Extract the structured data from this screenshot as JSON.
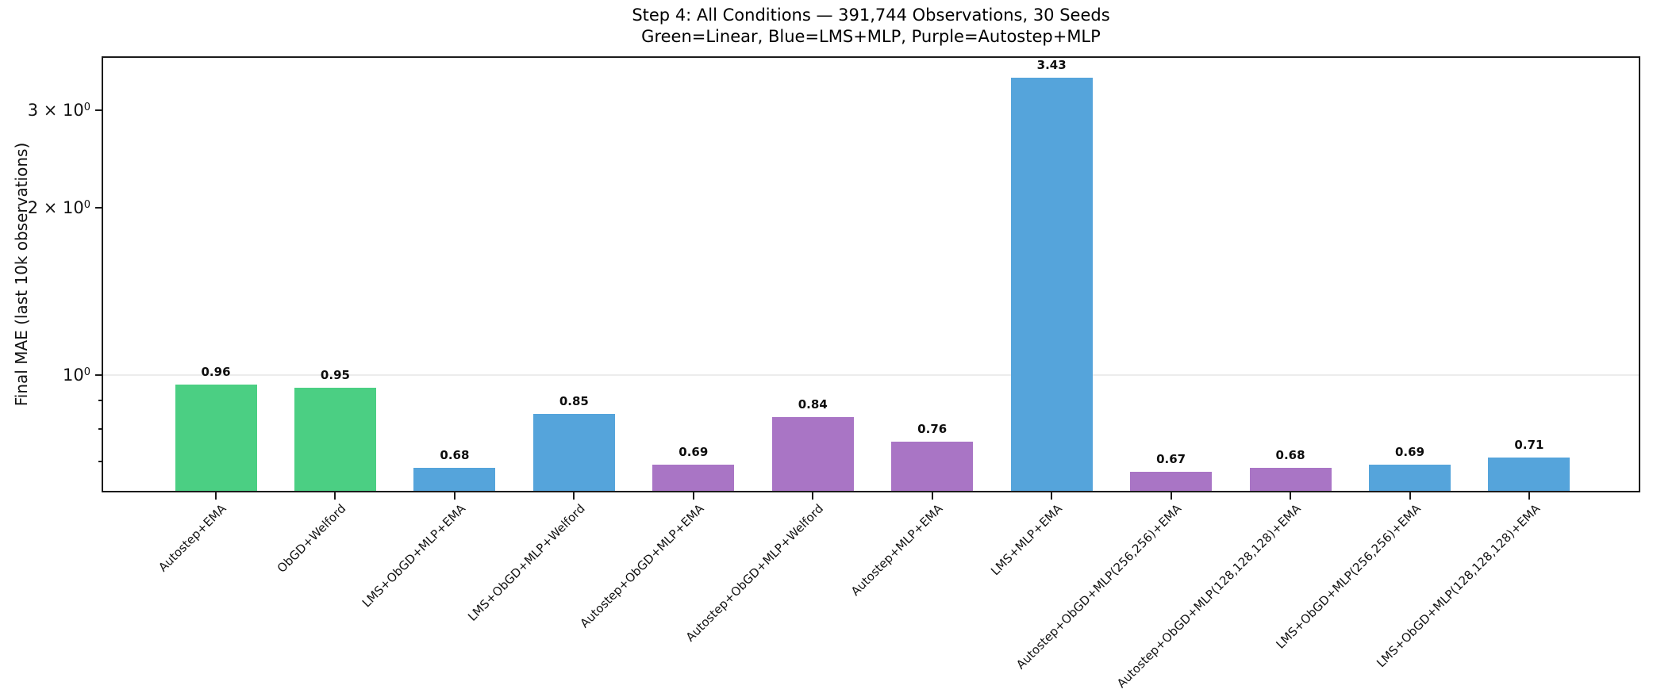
{
  "chart_data": {
    "type": "bar",
    "title": "Step 4: All Conditions — 391,744 Observations, 30 Seeds",
    "subtitle": "Green=Linear, Blue=LMS+MLP, Purple=Autostep+MLP",
    "ylabel": "Final MAE (last 10k observations)",
    "xlabel": "",
    "yscale": "log",
    "ylim": [
      0.619,
      3.723
    ],
    "grid": "major-y-only",
    "grid_values": [
      1
    ],
    "yticks": [
      {
        "value": 1,
        "label": "10^0"
      },
      {
        "value": 2,
        "label": "2 × 10^0"
      },
      {
        "value": 3,
        "label": "3 × 10^0"
      }
    ],
    "yticks_minor": [
      0.9,
      0.8,
      0.7
    ],
    "categories": [
      "Autostep+EMA",
      "ObGD+Welford",
      "LMS+ObGD+MLP+EMA",
      "LMS+ObGD+MLP+Welford",
      "Autostep+ObGD+MLP+EMA",
      "Autostep+ObGD+MLP+Welford",
      "Autostep+MLP+EMA",
      "LMS+MLP+EMA",
      "Autostep+ObGD+MLP(256,256)+EMA",
      "Autostep+ObGD+MLP(128,128,128)+EMA",
      "LMS+ObGD+MLP(256,256)+EMA",
      "LMS+ObGD+MLP(128,128,128)+EMA"
    ],
    "values": [
      0.96,
      0.95,
      0.68,
      0.85,
      0.69,
      0.84,
      0.76,
      3.43,
      0.67,
      0.68,
      0.69,
      0.71
    ],
    "value_labels": [
      "0.96",
      "0.95",
      "0.68",
      "0.85",
      "0.69",
      "0.84",
      "0.76",
      "3.43",
      "0.67",
      "0.68",
      "0.69",
      "0.71"
    ],
    "bar_groups": [
      "linear",
      "linear",
      "lms_mlp",
      "lms_mlp",
      "autostep_mlp",
      "autostep_mlp",
      "autostep_mlp",
      "lms_mlp",
      "autostep_mlp",
      "autostep_mlp",
      "lms_mlp",
      "lms_mlp"
    ],
    "group_colors": {
      "linear": "#4BCF83",
      "lms_mlp": "#55A4DB",
      "autostep_mlp": "#A975C5"
    },
    "legend_position": "in-title"
  }
}
